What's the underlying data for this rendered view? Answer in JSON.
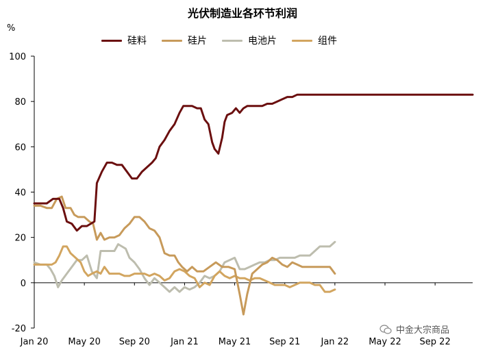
{
  "chart_data": {
    "type": "line",
    "title": "光伏制造业各环节利润",
    "unit_label": "%",
    "ylim": [
      -20,
      100
    ],
    "yticks": [
      -20,
      0,
      20,
      40,
      60,
      80,
      100
    ],
    "x_tick_labels": [
      "Jan 20",
      "May 20",
      "Sep 20",
      "Jan 21",
      "May 21",
      "Sep 21",
      "Jan 22",
      "May 22",
      "Sep 22"
    ],
    "x_range_months": [
      0,
      35
    ],
    "grid": false,
    "legend_position": "top",
    "series": [
      {
        "name": "硅料",
        "color": "#6b0f0f",
        "points": [
          [
            0,
            35
          ],
          [
            1,
            35
          ],
          [
            1.5,
            37
          ],
          [
            2,
            37
          ],
          [
            2.3,
            33
          ],
          [
            2.6,
            27
          ],
          [
            3,
            26
          ],
          [
            3.4,
            23
          ],
          [
            3.8,
            25
          ],
          [
            4.2,
            25
          ],
          [
            4.8,
            27
          ],
          [
            5,
            44
          ],
          [
            5.4,
            49
          ],
          [
            5.8,
            53
          ],
          [
            6.2,
            53
          ],
          [
            6.6,
            52
          ],
          [
            7,
            52
          ],
          [
            7.4,
            49
          ],
          [
            7.8,
            46
          ],
          [
            8.2,
            46
          ],
          [
            8.6,
            49
          ],
          [
            9,
            51
          ],
          [
            9.4,
            53
          ],
          [
            9.7,
            55
          ],
          [
            10,
            60
          ],
          [
            10.4,
            63
          ],
          [
            10.8,
            67
          ],
          [
            11.2,
            70
          ],
          [
            11.6,
            75
          ],
          [
            11.9,
            78
          ],
          [
            12.2,
            78
          ],
          [
            12.6,
            78
          ],
          [
            13,
            77
          ],
          [
            13.3,
            77
          ],
          [
            13.6,
            72
          ],
          [
            13.9,
            70
          ],
          [
            14.2,
            62
          ],
          [
            14.4,
            59
          ],
          [
            14.7,
            57
          ],
          [
            15,
            64
          ],
          [
            15.2,
            71
          ],
          [
            15.4,
            74
          ],
          [
            15.8,
            75
          ],
          [
            16.1,
            77
          ],
          [
            16.4,
            75
          ],
          [
            16.7,
            77
          ],
          [
            17,
            78
          ],
          [
            17.4,
            78
          ],
          [
            17.8,
            78
          ],
          [
            18.2,
            78
          ],
          [
            18.6,
            79
          ],
          [
            19,
            79
          ],
          [
            19.4,
            80
          ],
          [
            19.8,
            81
          ],
          [
            20.2,
            82
          ],
          [
            20.6,
            82
          ],
          [
            21,
            83
          ],
          [
            21.4,
            83
          ],
          [
            22,
            83
          ],
          [
            23,
            83
          ],
          [
            25,
            83
          ],
          [
            28,
            83
          ],
          [
            31,
            83
          ],
          [
            35,
            83
          ]
        ]
      },
      {
        "name": "硅片",
        "color": "#c79a5a",
        "points": [
          [
            0,
            34
          ],
          [
            0.5,
            34
          ],
          [
            1,
            33
          ],
          [
            1.4,
            33
          ],
          [
            1.8,
            37
          ],
          [
            2.2,
            38
          ],
          [
            2.5,
            33
          ],
          [
            2.9,
            33
          ],
          [
            3.2,
            30
          ],
          [
            3.5,
            29
          ],
          [
            4,
            29
          ],
          [
            4.4,
            27
          ],
          [
            4.7,
            26
          ],
          [
            5,
            19
          ],
          [
            5.3,
            22
          ],
          [
            5.6,
            19
          ],
          [
            6,
            20
          ],
          [
            6.4,
            20
          ],
          [
            6.8,
            21
          ],
          [
            7.2,
            24
          ],
          [
            7.6,
            26
          ],
          [
            8,
            29
          ],
          [
            8.4,
            29
          ],
          [
            8.8,
            27
          ],
          [
            9.2,
            24
          ],
          [
            9.6,
            23
          ],
          [
            10,
            20
          ],
          [
            10.4,
            13
          ],
          [
            10.8,
            12
          ],
          [
            11.2,
            12
          ],
          [
            11.5,
            9
          ],
          [
            11.8,
            7
          ],
          [
            12.2,
            5
          ],
          [
            12.6,
            7
          ],
          [
            13,
            5
          ],
          [
            13.5,
            5
          ],
          [
            14,
            7
          ],
          [
            14.5,
            9
          ],
          [
            15,
            7
          ],
          [
            15.5,
            7
          ],
          [
            16,
            6
          ],
          [
            16.4,
            -5
          ],
          [
            16.7,
            -14
          ],
          [
            17,
            -5
          ],
          [
            17.4,
            4
          ],
          [
            17.8,
            6
          ],
          [
            18.2,
            8
          ],
          [
            18.6,
            9
          ],
          [
            19,
            11
          ],
          [
            19.4,
            10
          ],
          [
            19.8,
            8
          ],
          [
            20.2,
            7
          ],
          [
            20.6,
            9
          ],
          [
            21,
            8
          ],
          [
            21.4,
            7
          ],
          [
            22,
            7
          ],
          [
            23,
            7
          ],
          [
            23.6,
            7
          ],
          [
            24,
            4
          ]
        ]
      },
      {
        "name": "电池片",
        "color": "#bdbdae",
        "points": [
          [
            0,
            9
          ],
          [
            0.5,
            8
          ],
          [
            1,
            8
          ],
          [
            1.3,
            6
          ],
          [
            1.6,
            3
          ],
          [
            1.9,
            -2
          ],
          [
            2.2,
            1
          ],
          [
            2.6,
            4
          ],
          [
            3,
            7
          ],
          [
            3.4,
            10
          ],
          [
            3.8,
            10
          ],
          [
            4.2,
            12
          ],
          [
            4.6,
            5
          ],
          [
            5,
            2
          ],
          [
            5.3,
            14
          ],
          [
            5.7,
            14
          ],
          [
            6,
            14
          ],
          [
            6.4,
            14
          ],
          [
            6.7,
            17
          ],
          [
            7,
            16
          ],
          [
            7.3,
            15
          ],
          [
            7.6,
            11
          ],
          [
            8,
            9
          ],
          [
            8.4,
            6
          ],
          [
            8.8,
            2
          ],
          [
            9.2,
            -1
          ],
          [
            9.6,
            2
          ],
          [
            10,
            0
          ],
          [
            10.4,
            -2
          ],
          [
            10.8,
            -4
          ],
          [
            11.2,
            -2
          ],
          [
            11.6,
            -4
          ],
          [
            12,
            -2
          ],
          [
            12.4,
            -3
          ],
          [
            12.8,
            -2
          ],
          [
            13.2,
            0
          ],
          [
            13.6,
            3
          ],
          [
            14,
            2
          ],
          [
            14.4,
            3
          ],
          [
            14.8,
            5
          ],
          [
            15.2,
            9
          ],
          [
            15.6,
            10
          ],
          [
            16,
            11
          ],
          [
            16.4,
            6
          ],
          [
            16.8,
            6
          ],
          [
            17.2,
            7
          ],
          [
            17.6,
            8
          ],
          [
            18,
            9
          ],
          [
            18.4,
            9
          ],
          [
            18.8,
            10
          ],
          [
            19.2,
            10
          ],
          [
            19.6,
            11
          ],
          [
            20,
            11
          ],
          [
            20.4,
            11
          ],
          [
            20.8,
            11
          ],
          [
            21.2,
            12
          ],
          [
            21.6,
            12
          ],
          [
            22,
            12
          ],
          [
            22.4,
            14
          ],
          [
            22.8,
            16
          ],
          [
            23.2,
            16
          ],
          [
            23.6,
            16
          ],
          [
            24,
            18
          ]
        ]
      },
      {
        "name": "组件",
        "color": "#d2a55f",
        "points": [
          [
            0,
            8
          ],
          [
            0.5,
            8
          ],
          [
            1,
            8
          ],
          [
            1.4,
            8
          ],
          [
            1.7,
            9
          ],
          [
            2,
            12
          ],
          [
            2.3,
            16
          ],
          [
            2.6,
            16
          ],
          [
            2.9,
            13
          ],
          [
            3.3,
            11
          ],
          [
            3.7,
            9
          ],
          [
            4,
            5
          ],
          [
            4.3,
            3
          ],
          [
            4.6,
            4
          ],
          [
            5,
            5
          ],
          [
            5.3,
            4
          ],
          [
            5.6,
            7
          ],
          [
            6,
            4
          ],
          [
            6.4,
            4
          ],
          [
            6.8,
            4
          ],
          [
            7.2,
            3
          ],
          [
            7.6,
            3
          ],
          [
            8,
            4
          ],
          [
            8.4,
            4
          ],
          [
            8.8,
            4
          ],
          [
            9.2,
            3
          ],
          [
            9.6,
            4
          ],
          [
            10,
            3
          ],
          [
            10.4,
            1
          ],
          [
            10.8,
            2
          ],
          [
            11.2,
            5
          ],
          [
            11.6,
            6
          ],
          [
            12,
            5
          ],
          [
            12.4,
            3
          ],
          [
            12.8,
            2
          ],
          [
            13.2,
            -2
          ],
          [
            13.6,
            0
          ],
          [
            14,
            -1
          ],
          [
            14.4,
            3
          ],
          [
            14.8,
            5
          ],
          [
            15.2,
            3
          ],
          [
            15.6,
            2
          ],
          [
            16,
            3
          ],
          [
            16.4,
            2
          ],
          [
            16.8,
            2
          ],
          [
            17.2,
            1
          ],
          [
            17.6,
            2
          ],
          [
            18,
            2
          ],
          [
            18.4,
            1
          ],
          [
            18.8,
            0
          ],
          [
            19.2,
            -1
          ],
          [
            19.6,
            -1
          ],
          [
            20,
            -1
          ],
          [
            20.4,
            -2
          ],
          [
            20.8,
            -1
          ],
          [
            21.2,
            0
          ],
          [
            21.6,
            0
          ],
          [
            22,
            0
          ],
          [
            22.4,
            -1
          ],
          [
            22.8,
            -1
          ],
          [
            23.2,
            -4
          ],
          [
            23.6,
            -4
          ],
          [
            24,
            -3
          ]
        ]
      }
    ]
  },
  "watermark": "中金大宗商品",
  "watermark_icon": "wechat-icon"
}
